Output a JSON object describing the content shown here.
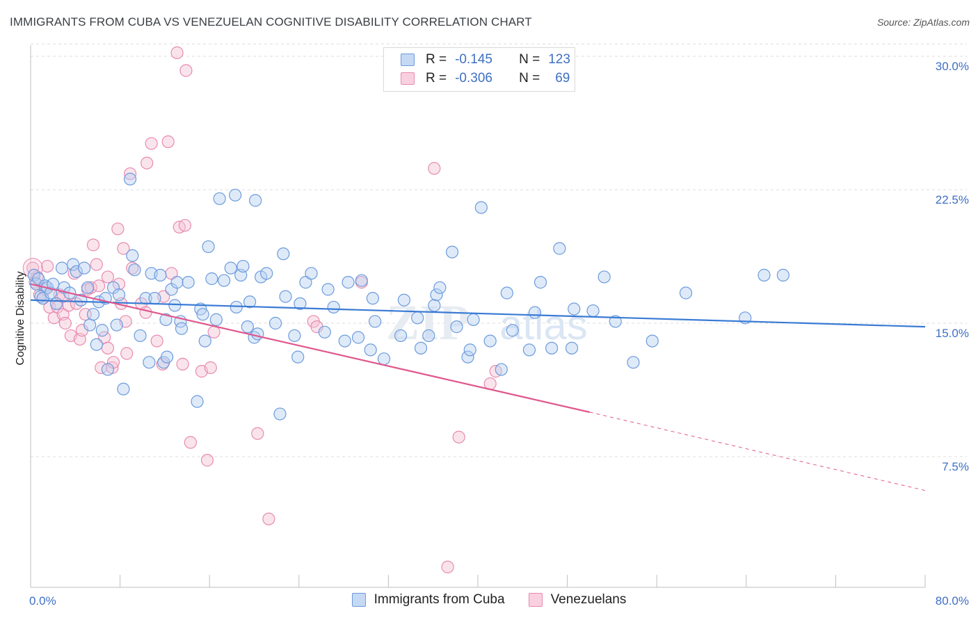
{
  "title": "IMMIGRANTS FROM CUBA VS VENEZUELAN COGNITIVE DISABILITY CORRELATION CHART",
  "source": "Source: ZipAtlas.com",
  "watermark": {
    "zip": "ZIP",
    "atlas": "atlas"
  },
  "colors": {
    "blue": "#3a7bd5",
    "blue_fill": "#b9d0f2",
    "pink": "#e0578d",
    "pink_fill": "#f5c3d4",
    "grid": "#dcdcdc",
    "tick_text": "#3f6fc4"
  },
  "legend": {
    "rows": [
      {
        "r_label": "R =",
        "r_value": "-0.145",
        "n_label": "N =",
        "n_value": "123"
      },
      {
        "r_label": "R =",
        "r_value": "-0.306",
        "n_label": "N =",
        "n_value": "69"
      }
    ]
  },
  "bottom_legend": {
    "series1": "Immigrants from Cuba",
    "series2": "Venezuelans"
  },
  "chart_data": {
    "type": "scatter",
    "title": "IMMIGRANTS FROM CUBA VS VENEZUELAN COGNITIVE DISABILITY CORRELATION CHART",
    "xlabel": "",
    "ylabel": "Cognitive Disability",
    "xlim": [
      0,
      80
    ],
    "ylim": [
      0,
      31
    ],
    "x_tick_labels": [
      "0.0%",
      "80.0%"
    ],
    "y_ticks": [
      7.5,
      15.0,
      22.5,
      30.0
    ],
    "y_tick_labels": [
      "7.5%",
      "15.0%",
      "22.5%",
      "30.0%"
    ],
    "grid": true,
    "legend_position": "top-center",
    "series": [
      {
        "name": "Immigrants from Cuba",
        "color": "#3a7bd5",
        "trend": {
          "x": [
            0,
            80
          ],
          "y": [
            16.3,
            14.8
          ]
        },
        "points": [
          [
            0.3,
            17.7
          ],
          [
            0.5,
            17.2
          ],
          [
            0.7,
            17.5
          ],
          [
            0.9,
            16.5
          ],
          [
            1.1,
            16.4
          ],
          [
            1.3,
            17.1
          ],
          [
            1.5,
            17.0
          ],
          [
            1.8,
            16.7
          ],
          [
            2.0,
            17.2
          ],
          [
            2.3,
            16.1
          ],
          [
            2.8,
            18.1
          ],
          [
            3.0,
            17.0
          ],
          [
            3.5,
            16.7
          ],
          [
            3.8,
            18.3
          ],
          [
            4.1,
            17.9
          ],
          [
            4.5,
            16.3
          ],
          [
            4.8,
            18.1
          ],
          [
            5.1,
            17.0
          ],
          [
            5.3,
            14.9
          ],
          [
            5.6,
            15.5
          ],
          [
            5.9,
            13.8
          ],
          [
            6.1,
            16.2
          ],
          [
            6.4,
            14.6
          ],
          [
            6.7,
            16.4
          ],
          [
            6.9,
            12.4
          ],
          [
            7.4,
            17.0
          ],
          [
            7.7,
            14.9
          ],
          [
            7.9,
            16.6
          ],
          [
            8.3,
            11.3
          ],
          [
            8.9,
            23.1
          ],
          [
            9.3,
            18.0
          ],
          [
            9.1,
            18.8
          ],
          [
            9.8,
            14.3
          ],
          [
            10.3,
            16.4
          ],
          [
            10.6,
            12.8
          ],
          [
            10.8,
            17.8
          ],
          [
            11.1,
            16.4
          ],
          [
            11.6,
            17.7
          ],
          [
            11.9,
            12.8
          ],
          [
            12.1,
            15.2
          ],
          [
            12.2,
            13.1
          ],
          [
            12.6,
            16.9
          ],
          [
            12.9,
            16.0
          ],
          [
            13.1,
            17.3
          ],
          [
            13.4,
            15.1
          ],
          [
            13.5,
            14.7
          ],
          [
            14.1,
            17.3
          ],
          [
            14.9,
            10.6
          ],
          [
            15.2,
            15.8
          ],
          [
            15.4,
            15.5
          ],
          [
            15.6,
            14.0
          ],
          [
            15.9,
            19.3
          ],
          [
            16.2,
            17.5
          ],
          [
            16.6,
            15.2
          ],
          [
            16.9,
            22.0
          ],
          [
            17.3,
            17.4
          ],
          [
            17.9,
            18.1
          ],
          [
            18.3,
            22.2
          ],
          [
            18.4,
            15.9
          ],
          [
            18.8,
            17.7
          ],
          [
            19.0,
            18.2
          ],
          [
            19.4,
            14.8
          ],
          [
            19.6,
            16.2
          ],
          [
            20.0,
            14.2
          ],
          [
            20.3,
            14.4
          ],
          [
            20.1,
            21.9
          ],
          [
            20.6,
            17.6
          ],
          [
            21.1,
            17.8
          ],
          [
            21.9,
            15.0
          ],
          [
            22.3,
            9.9
          ],
          [
            22.6,
            18.9
          ],
          [
            22.8,
            16.5
          ],
          [
            23.6,
            14.3
          ],
          [
            23.9,
            13.1
          ],
          [
            24.1,
            16.1
          ],
          [
            24.6,
            17.3
          ],
          [
            25.1,
            17.8
          ],
          [
            26.3,
            14.5
          ],
          [
            26.6,
            16.9
          ],
          [
            27.1,
            15.9
          ],
          [
            28.1,
            14.0
          ],
          [
            28.4,
            17.3
          ],
          [
            29.3,
            14.2
          ],
          [
            29.6,
            17.4
          ],
          [
            30.4,
            13.5
          ],
          [
            30.6,
            16.4
          ],
          [
            30.8,
            15.1
          ],
          [
            31.6,
            13.0
          ],
          [
            33.1,
            14.3
          ],
          [
            33.4,
            16.3
          ],
          [
            34.6,
            15.3
          ],
          [
            34.9,
            13.6
          ],
          [
            35.6,
            14.3
          ],
          [
            36.1,
            16.0
          ],
          [
            36.3,
            16.6
          ],
          [
            36.6,
            17.0
          ],
          [
            37.7,
            19.0
          ],
          [
            38.1,
            14.8
          ],
          [
            39.1,
            13.1
          ],
          [
            39.3,
            13.5
          ],
          [
            39.6,
            15.2
          ],
          [
            40.3,
            21.5
          ],
          [
            41.1,
            14.0
          ],
          [
            42.1,
            12.4
          ],
          [
            42.6,
            16.7
          ],
          [
            43.1,
            14.6
          ],
          [
            44.6,
            13.5
          ],
          [
            45.1,
            15.6
          ],
          [
            45.6,
            17.3
          ],
          [
            46.6,
            13.6
          ],
          [
            47.3,
            19.2
          ],
          [
            48.4,
            13.6
          ],
          [
            48.6,
            15.8
          ],
          [
            50.3,
            15.7
          ],
          [
            51.3,
            17.6
          ],
          [
            52.3,
            15.1
          ],
          [
            53.9,
            12.8
          ],
          [
            55.6,
            14.0
          ],
          [
            58.6,
            16.7
          ],
          [
            63.9,
            15.3
          ],
          [
            65.6,
            17.7
          ],
          [
            67.3,
            17.7
          ]
        ]
      },
      {
        "name": "Venezuelans",
        "color": "#e0578d",
        "trend": {
          "x": [
            0,
            50
          ],
          "y": [
            17.2,
            10.0
          ]
        },
        "trend_dashed": {
          "x": [
            50,
            80
          ],
          "y": [
            10.0,
            5.6
          ]
        },
        "points": [
          [
            0.2,
            18.1
          ],
          [
            0.4,
            17.3
          ],
          [
            0.6,
            17.6
          ],
          [
            0.8,
            16.6
          ],
          [
            1.1,
            16.4
          ],
          [
            1.3,
            16.9
          ],
          [
            1.5,
            18.2
          ],
          [
            1.7,
            15.9
          ],
          [
            2.1,
            15.3
          ],
          [
            2.4,
            15.9
          ],
          [
            2.6,
            16.6
          ],
          [
            2.9,
            15.5
          ],
          [
            3.1,
            15.0
          ],
          [
            3.4,
            16.0
          ],
          [
            3.6,
            14.3
          ],
          [
            3.9,
            17.8
          ],
          [
            4.1,
            16.1
          ],
          [
            4.4,
            14.1
          ],
          [
            4.6,
            14.6
          ],
          [
            4.9,
            15.5
          ],
          [
            5.1,
            16.9
          ],
          [
            5.4,
            17.0
          ],
          [
            5.6,
            19.4
          ],
          [
            5.9,
            18.3
          ],
          [
            6.1,
            17.1
          ],
          [
            6.3,
            12.5
          ],
          [
            6.6,
            14.2
          ],
          [
            6.9,
            13.6
          ],
          [
            6.9,
            17.6
          ],
          [
            7.3,
            12.5
          ],
          [
            7.4,
            12.8
          ],
          [
            7.8,
            20.3
          ],
          [
            7.9,
            17.2
          ],
          [
            8.1,
            16.1
          ],
          [
            8.3,
            19.2
          ],
          [
            8.5,
            15.1
          ],
          [
            8.6,
            13.3
          ],
          [
            8.9,
            23.4
          ],
          [
            9.1,
            18.1
          ],
          [
            9.9,
            16.1
          ],
          [
            10.3,
            15.6
          ],
          [
            10.4,
            24.0
          ],
          [
            10.8,
            25.1
          ],
          [
            11.3,
            14.0
          ],
          [
            11.8,
            12.7
          ],
          [
            11.9,
            16.5
          ],
          [
            12.3,
            25.2
          ],
          [
            12.6,
            17.8
          ],
          [
            13.1,
            30.2
          ],
          [
            13.3,
            20.4
          ],
          [
            13.6,
            12.7
          ],
          [
            13.8,
            20.5
          ],
          [
            13.9,
            29.2
          ],
          [
            14.3,
            8.3
          ],
          [
            15.3,
            12.3
          ],
          [
            15.8,
            7.3
          ],
          [
            16.1,
            12.5
          ],
          [
            16.4,
            14.5
          ],
          [
            20.3,
            8.8
          ],
          [
            21.3,
            4.0
          ],
          [
            25.3,
            15.1
          ],
          [
            25.6,
            14.8
          ],
          [
            29.6,
            17.3
          ],
          [
            36.1,
            23.7
          ],
          [
            37.3,
            1.3
          ],
          [
            38.3,
            8.6
          ],
          [
            41.1,
            11.6
          ],
          [
            41.6,
            12.3
          ],
          [
            2.9,
            16.5
          ]
        ]
      }
    ]
  }
}
